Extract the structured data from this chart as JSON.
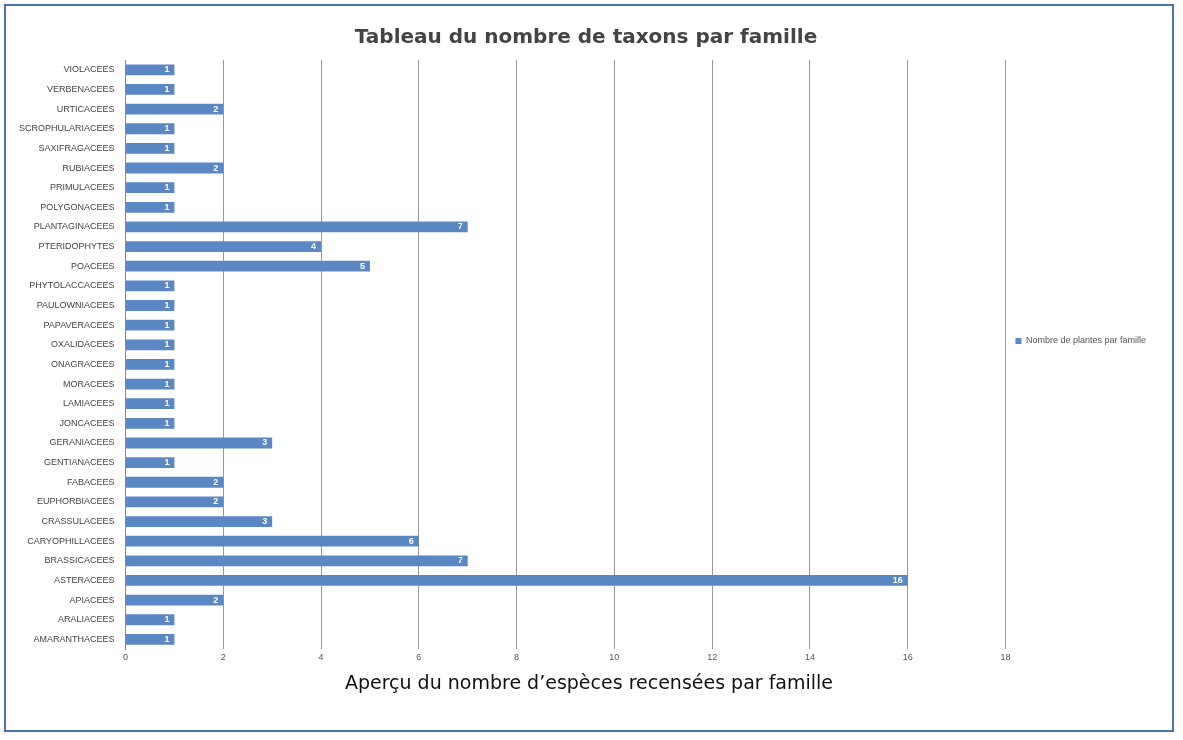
{
  "chart_data": {
    "type": "bar",
    "orientation": "horizontal",
    "title": "Tableau du nombre de taxons par famille",
    "categories": [
      "VIOLACEES",
      "VERBENACEES",
      "URTICACEES",
      "SCROPHULARIACEES",
      "SAXIFRAGACEES",
      "RUBIACEES",
      "PRIMULACEES",
      "POLYGONACEES",
      "PLANTAGINACEES",
      "PTERIDOPHYTES",
      "POACEES",
      "PHYTOLACCACEES",
      "PAULOWNIACEES",
      "PAPAVERACEES",
      "OXALIDACEES",
      "ONAGRACEES",
      "MORACEES",
      "LAMIACEES",
      "JONCACEES",
      "GERANIACEES",
      "GENTIANACEES",
      "FABACEES",
      "EUPHORBIACEES",
      "CRASSULACEES",
      "CARYOPHILLACEES",
      "BRASSICACEES",
      "ASTERACEES",
      "APIACEES",
      "ARALIACEES",
      "AMARANTHACEES"
    ],
    "series": [
      {
        "name": "Nombre de plantes par famille",
        "color": "#5b87c5",
        "values": [
          1,
          1,
          2,
          1,
          1,
          2,
          1,
          1,
          7,
          4,
          5,
          1,
          1,
          1,
          1,
          1,
          1,
          1,
          1,
          3,
          1,
          2,
          2,
          3,
          6,
          7,
          16,
          2,
          1,
          1
        ]
      }
    ],
    "xlim": [
      0,
      18
    ],
    "xticks": [
      0,
      2,
      4,
      6,
      8,
      10,
      12,
      14,
      16,
      18
    ],
    "grid": "x",
    "legend": "right",
    "data_labels": true,
    "annotations": [
      "Aperçu du nombre d’espèces recensées par famille"
    ]
  }
}
